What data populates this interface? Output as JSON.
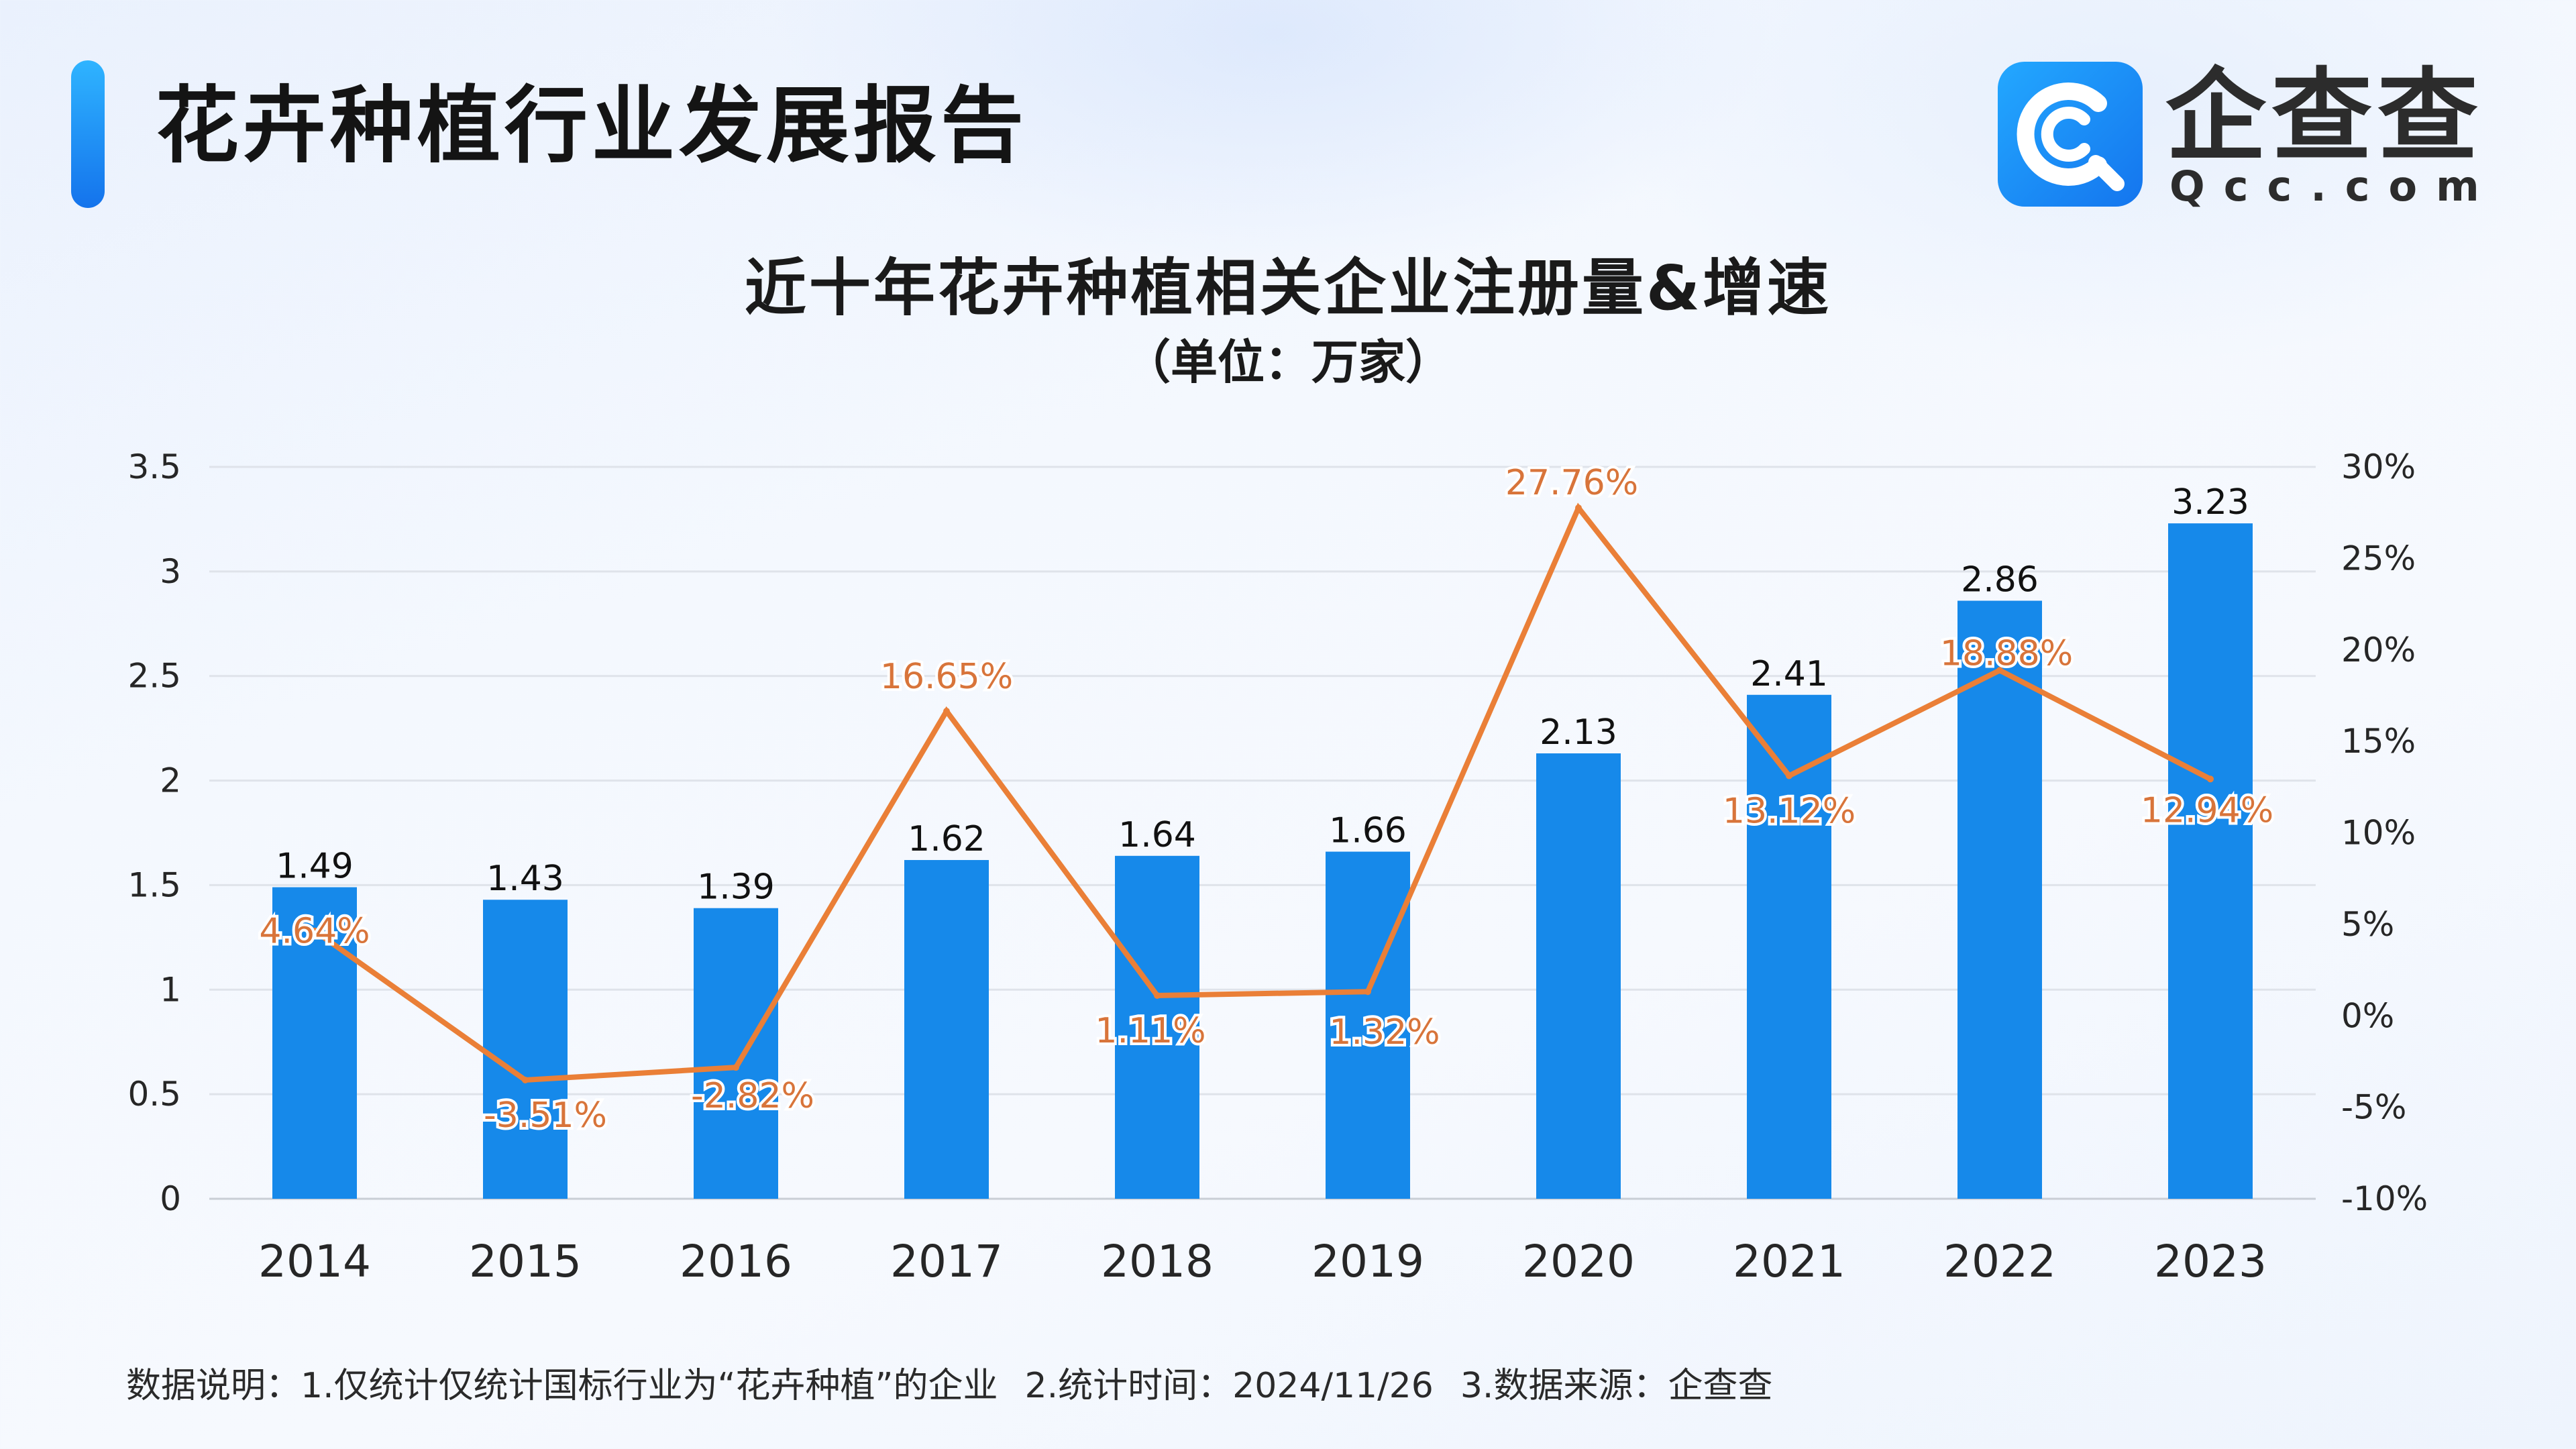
{
  "header": {
    "report_title": "花卉种植行业发展报告",
    "logo_name": "企查查",
    "logo_domain": "Qcc.com"
  },
  "colors": {
    "bar": "#1689ea",
    "line": "#ea7f37",
    "line_label": "#d8743a",
    "accent": "#1a7df0"
  },
  "chart_data": {
    "type": "bar",
    "title": "近十年花卉种植相关企业注册量&增速",
    "subtitle": "（单位：万家）",
    "categories": [
      "2014",
      "2015",
      "2016",
      "2017",
      "2018",
      "2019",
      "2020",
      "2021",
      "2022",
      "2023"
    ],
    "series": [
      {
        "type": "bar",
        "axis": "left",
        "values": [
          1.49,
          1.43,
          1.39,
          1.62,
          1.64,
          1.66,
          2.13,
          2.41,
          2.86,
          3.23
        ],
        "labels": [
          "1.49",
          "1.43",
          "1.39",
          "1.62",
          "1.64",
          "1.66",
          "2.13",
          "2.41",
          "2.86",
          "3.23"
        ]
      },
      {
        "type": "line",
        "axis": "right",
        "values": [
          4.64,
          -3.51,
          -2.82,
          16.65,
          1.11,
          1.32,
          27.76,
          13.12,
          18.88,
          12.94
        ],
        "labels": [
          "4.64%",
          "-3.51%",
          "-2.82%",
          "16.65%",
          "1.11%",
          "1.32%",
          "27.76%",
          "13.12%",
          "18.88%",
          "12.94%"
        ]
      }
    ],
    "y_left": {
      "range": [
        0,
        3.5
      ],
      "ticks": [
        "0",
        "0.5",
        "1",
        "1.5",
        "2",
        "2.5",
        "3",
        "3.5"
      ]
    },
    "y_right": {
      "range": [
        -10,
        30
      ],
      "ticks": [
        "-10%",
        "-5%",
        "0%",
        "5%",
        "10%",
        "15%",
        "20%",
        "25%",
        "30%"
      ]
    },
    "grid": true
  },
  "footnote": {
    "note1": "数据说明：1.仅统计仅统计国标行业为“花卉种植”的企业",
    "note2": "2.统计时间：2024/11/26",
    "note3": "3.数据来源：企查查"
  }
}
